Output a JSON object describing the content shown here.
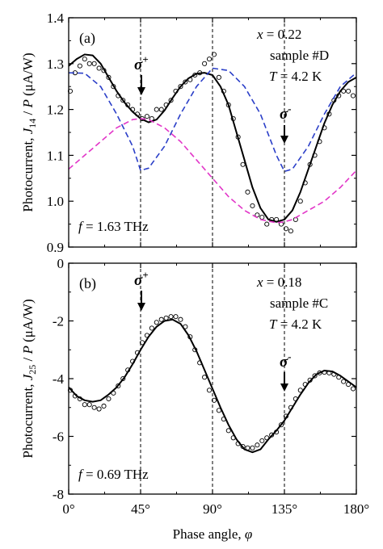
{
  "chart_data": [
    {
      "type": "line",
      "panel_label": "(a)",
      "ylabel_main": "Photocurrent, ",
      "ylabel_J": "J",
      "ylabel_sub": "14",
      "ylabel_sep": " / ",
      "ylabel_P": "P",
      "ylabel_unit": " (μA/W)",
      "ylim": [
        0.9,
        1.4
      ],
      "yticks": [
        0.9,
        1.0,
        1.1,
        1.2,
        1.3,
        1.4
      ],
      "ytick_labels": [
        "0.9",
        "1.0",
        "1.1",
        "1.2",
        "1.3",
        "1.4"
      ],
      "xlim": [
        0,
        180
      ],
      "vlines": [
        45,
        90,
        135
      ],
      "info": {
        "x_var": "x",
        "x_value": " = 0.22",
        "sample": "sample #D",
        "T_var": "T",
        "T_value": " = 4.2 K"
      },
      "freq": {
        "var": "f",
        "value": " = 1.63 THz"
      },
      "arrows": [
        {
          "x": 45,
          "label": "σ",
          "sup": "+"
        },
        {
          "x": 135,
          "label": "σ",
          "sup": "-"
        }
      ],
      "series": [
        {
          "style": "solid",
          "color": "#000000",
          "x": [
            0,
            5,
            10,
            15,
            20,
            25,
            30,
            35,
            40,
            45,
            50,
            55,
            60,
            65,
            70,
            75,
            80,
            85,
            90,
            95,
            100,
            105,
            110,
            115,
            120,
            125,
            130,
            135,
            140,
            145,
            150,
            155,
            160,
            165,
            170,
            175,
            180
          ],
          "y": [
            1.295,
            1.31,
            1.32,
            1.318,
            1.3,
            1.27,
            1.24,
            1.215,
            1.195,
            1.18,
            1.172,
            1.178,
            1.198,
            1.225,
            1.25,
            1.268,
            1.278,
            1.28,
            1.275,
            1.25,
            1.21,
            1.15,
            1.09,
            1.03,
            0.985,
            0.96,
            0.955,
            0.96,
            0.98,
            1.02,
            1.07,
            1.12,
            1.17,
            1.21,
            1.24,
            1.26,
            1.27
          ]
        },
        {
          "style": "dashed",
          "color": "#2b3fc8",
          "x": [
            0,
            10,
            20,
            30,
            40,
            45,
            50,
            60,
            70,
            80,
            90,
            100,
            110,
            120,
            130,
            135,
            140,
            150,
            160,
            170,
            180
          ],
          "y": [
            1.28,
            1.279,
            1.25,
            1.19,
            1.12,
            1.067,
            1.072,
            1.12,
            1.19,
            1.25,
            1.29,
            1.285,
            1.25,
            1.19,
            1.1,
            1.065,
            1.07,
            1.12,
            1.19,
            1.25,
            1.28
          ]
        },
        {
          "style": "dashed",
          "color": "#e236c8",
          "x": [
            0,
            10,
            20,
            30,
            40,
            45,
            50,
            60,
            70,
            80,
            90,
            100,
            110,
            120,
            130,
            135,
            140,
            150,
            160,
            170,
            180
          ],
          "y": [
            1.07,
            1.1,
            1.13,
            1.16,
            1.178,
            1.18,
            1.178,
            1.16,
            1.13,
            1.09,
            1.05,
            1.01,
            0.98,
            0.96,
            0.953,
            0.955,
            0.96,
            0.98,
            1.0,
            1.03,
            1.067
          ]
        }
      ],
      "points": {
        "x": [
          1,
          4,
          7,
          10,
          13,
          16,
          19,
          22,
          25,
          28,
          31,
          34,
          37,
          40,
          43,
          46,
          49,
          52,
          55,
          58,
          61,
          64,
          67,
          70,
          73,
          76,
          79,
          82,
          85,
          88,
          91,
          94,
          97,
          100,
          103,
          106,
          109,
          112,
          115,
          118,
          121,
          124,
          127,
          130,
          133,
          136,
          139,
          142,
          145,
          148,
          151,
          154,
          157,
          160,
          163,
          166,
          169,
          172,
          175,
          178
        ],
        "y": [
          1.24,
          1.28,
          1.295,
          1.31,
          1.3,
          1.3,
          1.29,
          1.285,
          1.27,
          1.25,
          1.23,
          1.22,
          1.21,
          1.2,
          1.19,
          1.18,
          1.185,
          1.18,
          1.2,
          1.2,
          1.21,
          1.22,
          1.24,
          1.25,
          1.26,
          1.265,
          1.275,
          1.28,
          1.3,
          1.31,
          1.32,
          1.27,
          1.24,
          1.21,
          1.18,
          1.14,
          1.08,
          1.02,
          0.99,
          0.97,
          0.965,
          0.95,
          0.96,
          0.96,
          0.95,
          0.94,
          0.935,
          0.96,
          1.0,
          1.04,
          1.08,
          1.1,
          1.13,
          1.16,
          1.19,
          1.22,
          1.23,
          1.24,
          1.24,
          1.23
        ]
      }
    },
    {
      "type": "line",
      "panel_label": "(b)",
      "ylabel_main": "Photocurrent, ",
      "ylabel_J": "J",
      "ylabel_sub": "25",
      "ylabel_sep": " / ",
      "ylabel_P": "P",
      "ylabel_unit": " (μA/W)",
      "ylim": [
        -8,
        0
      ],
      "yticks": [
        -8,
        -6,
        -4,
        -2,
        0
      ],
      "ytick_labels": [
        "-8",
        "-6",
        "-4",
        "-2",
        "0"
      ],
      "xlim": [
        0,
        180
      ],
      "xticks": [
        0,
        45,
        90,
        135,
        180
      ],
      "xtick_labels": [
        "0°",
        "45°",
        "90°",
        "135°",
        "180°"
      ],
      "xlabel_main": "Phase angle, ",
      "xlabel_var": "φ",
      "vlines": [
        45,
        90,
        135
      ],
      "info": {
        "x_var": "x",
        "x_value": " = 0.18",
        "sample": "sample #C",
        "T_var": "T",
        "T_value": " = 4.2 K"
      },
      "freq": {
        "var": "f",
        "value": " = 0.69 THz"
      },
      "arrows": [
        {
          "x": 45,
          "label": "σ",
          "sup": "+"
        },
        {
          "x": 135,
          "label": "σ",
          "sup": "-"
        }
      ],
      "series": [
        {
          "style": "solid",
          "color": "#000000",
          "x": [
            0,
            5,
            10,
            15,
            20,
            25,
            30,
            35,
            40,
            45,
            50,
            55,
            60,
            65,
            70,
            75,
            80,
            85,
            90,
            95,
            100,
            105,
            110,
            115,
            120,
            125,
            130,
            135,
            140,
            145,
            150,
            155,
            160,
            165,
            170,
            175,
            180
          ],
          "y": [
            -4.3,
            -4.6,
            -4.75,
            -4.8,
            -4.75,
            -4.55,
            -4.3,
            -3.95,
            -3.5,
            -3.0,
            -2.55,
            -2.2,
            -2.0,
            -1.95,
            -2.1,
            -2.5,
            -3.05,
            -3.7,
            -4.35,
            -5.0,
            -5.6,
            -6.1,
            -6.45,
            -6.55,
            -6.45,
            -6.1,
            -5.8,
            -5.45,
            -5.0,
            -4.55,
            -4.15,
            -3.85,
            -3.72,
            -3.75,
            -3.9,
            -4.1,
            -4.3
          ]
        }
      ],
      "points": {
        "x": [
          1,
          4,
          7,
          10,
          13,
          16,
          19,
          22,
          25,
          28,
          31,
          34,
          37,
          40,
          43,
          46,
          49,
          52,
          55,
          58,
          61,
          64,
          67,
          70,
          73,
          76,
          79,
          82,
          85,
          88,
          91,
          94,
          97,
          100,
          103,
          106,
          109,
          112,
          115,
          118,
          121,
          124,
          127,
          130,
          133,
          136,
          139,
          142,
          145,
          148,
          151,
          154,
          157,
          160,
          163,
          166,
          169,
          172,
          175,
          178
        ],
        "y": [
          -4.4,
          -4.6,
          -4.7,
          -4.9,
          -4.9,
          -5.0,
          -5.05,
          -4.95,
          -4.7,
          -4.5,
          -4.25,
          -4.0,
          -3.7,
          -3.4,
          -3.1,
          -2.75,
          -2.5,
          -2.25,
          -2.05,
          -1.95,
          -1.9,
          -1.85,
          -1.85,
          -1.95,
          -2.2,
          -2.55,
          -3.0,
          -3.45,
          -3.95,
          -4.4,
          -4.75,
          -5.1,
          -5.4,
          -5.8,
          -6.05,
          -6.25,
          -6.35,
          -6.4,
          -6.4,
          -6.3,
          -6.15,
          -6.05,
          -5.95,
          -5.85,
          -5.6,
          -5.3,
          -5.0,
          -4.7,
          -4.4,
          -4.2,
          -4.05,
          -3.9,
          -3.8,
          -3.78,
          -3.8,
          -3.85,
          -3.95,
          -4.1,
          -4.2,
          -4.35
        ]
      }
    }
  ]
}
